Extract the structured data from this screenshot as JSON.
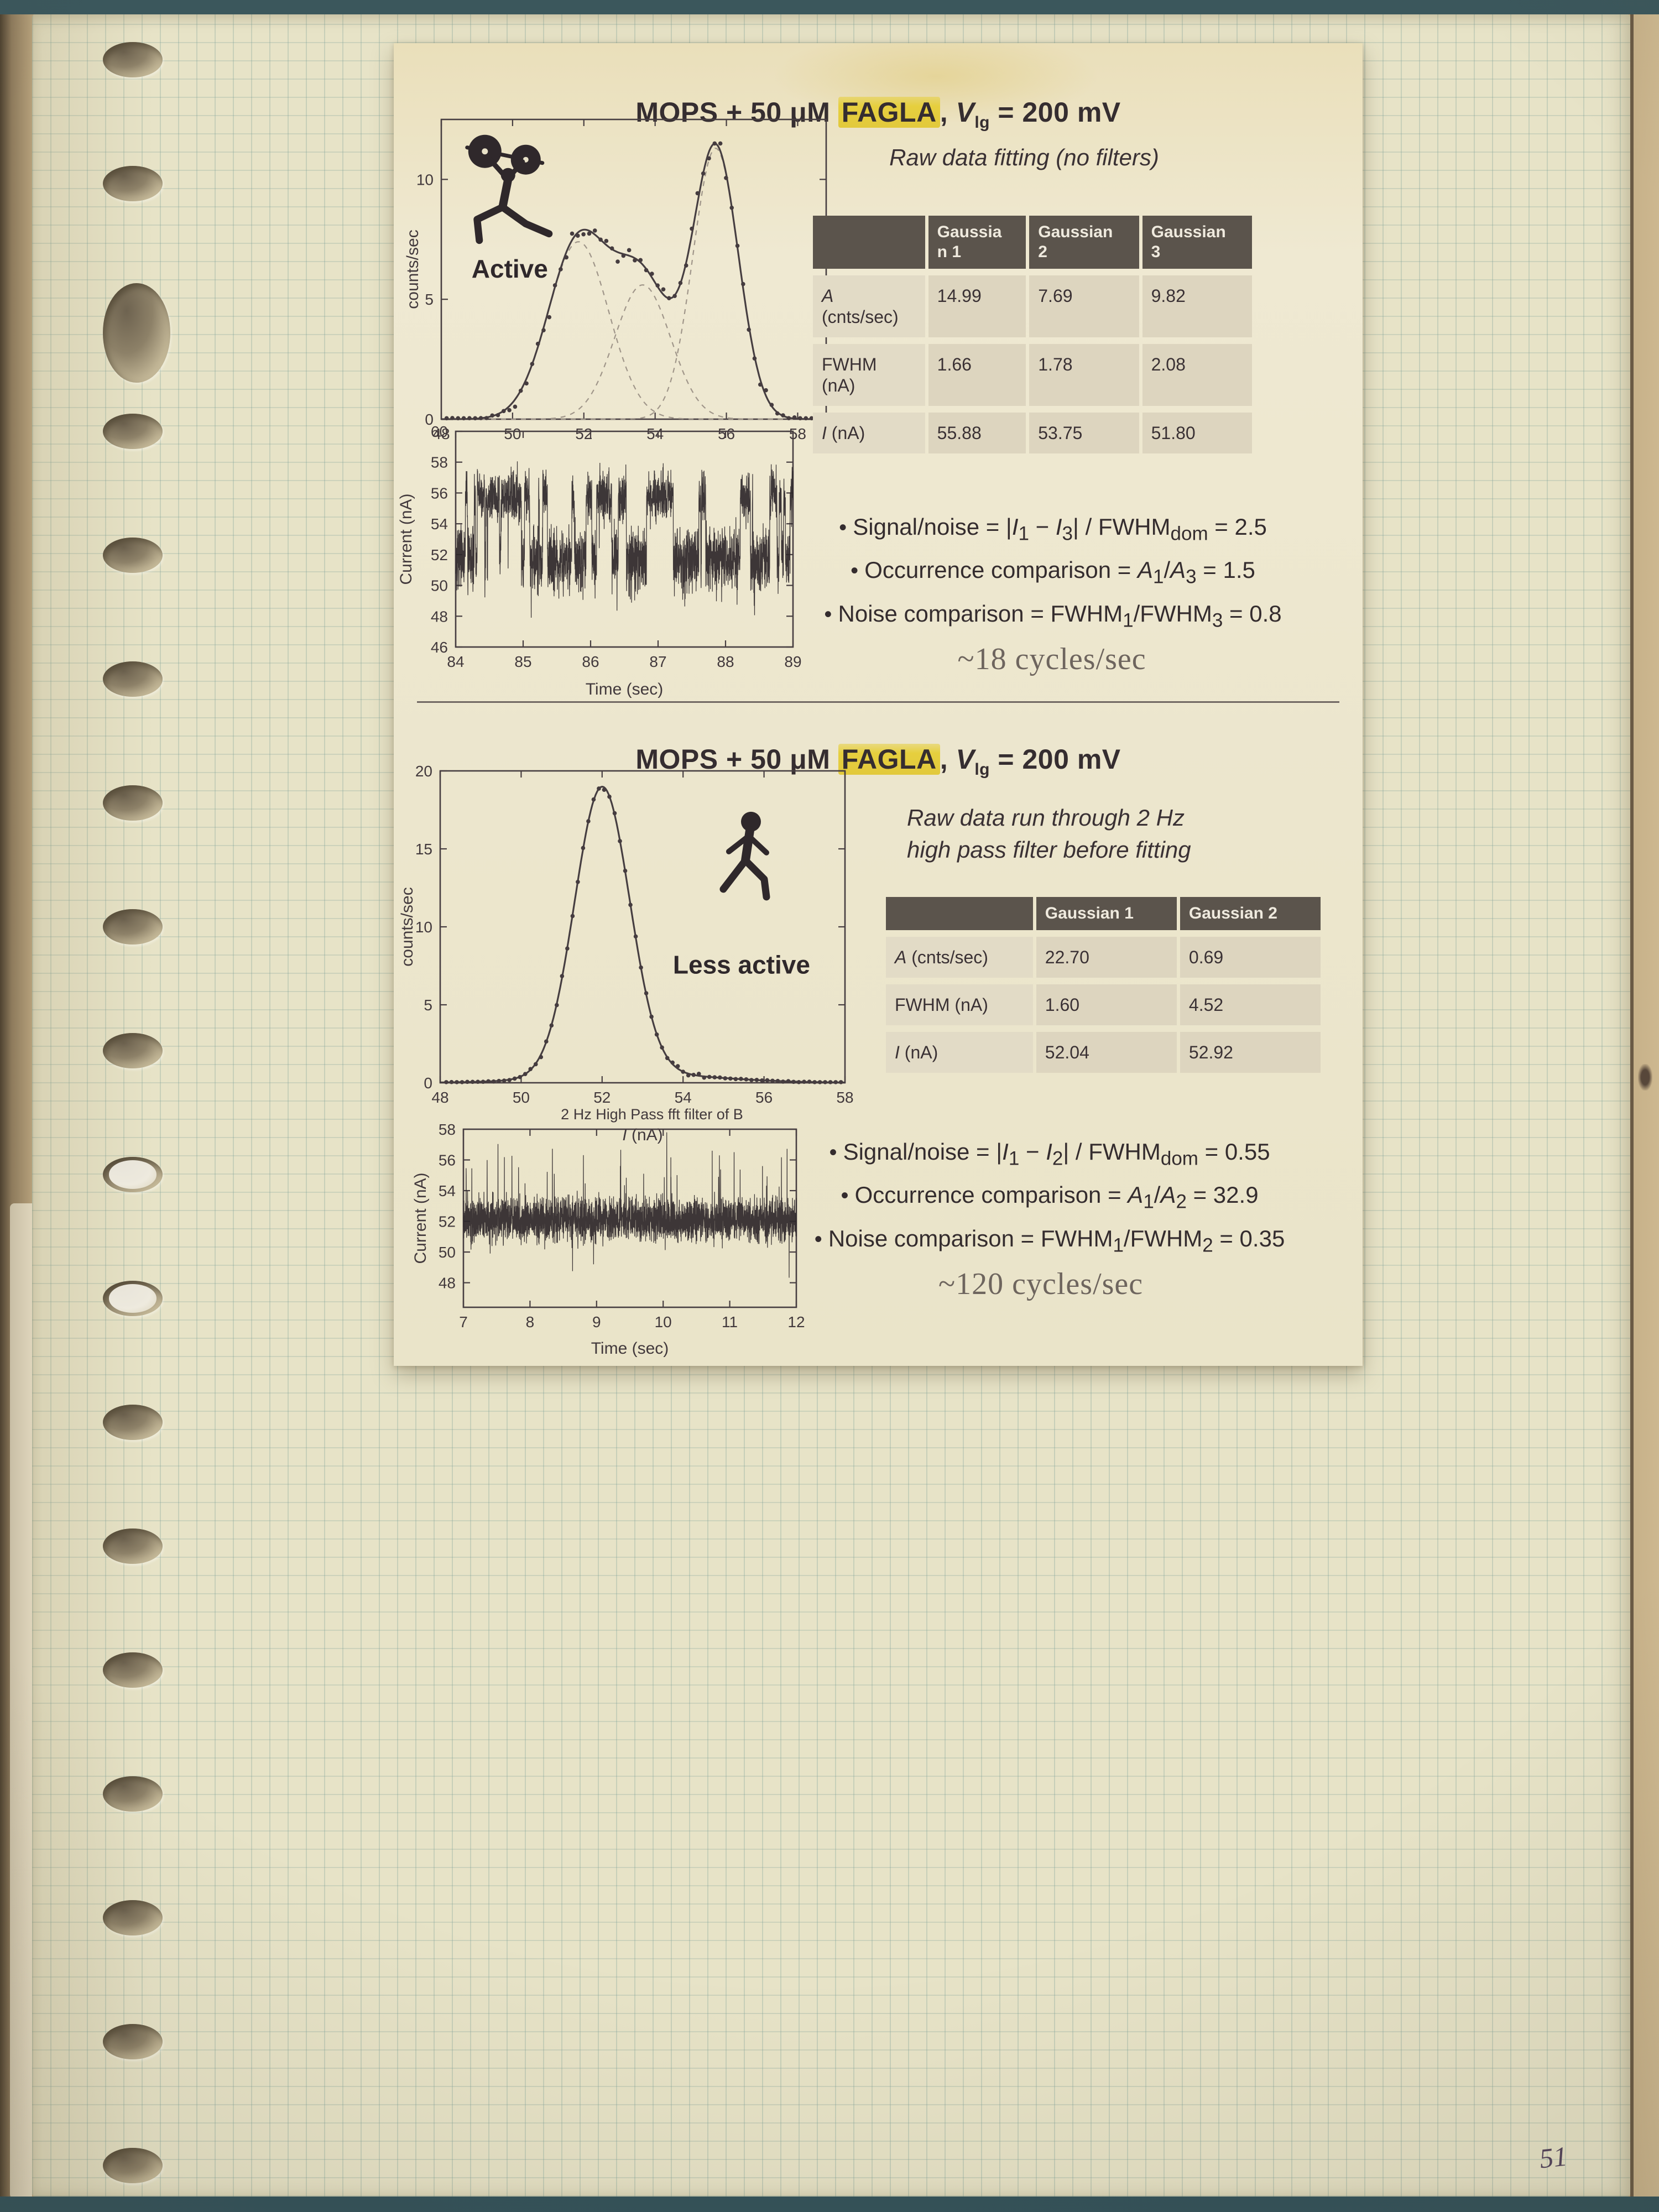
{
  "page": {
    "handwritten_number": "51"
  },
  "colors": {
    "highlight_yellow": "#e6cf3e",
    "notebook_paper": "#e7e3c7",
    "grid_line": "#7da098",
    "printed_sheet": "#ece6cd",
    "table_header_bg": "#5b544c",
    "ink": "#3a3134",
    "rate_gray": "#6e655e",
    "desk_tan": "#c3ad85",
    "photo_edge_teal": "#3b575c"
  },
  "sections": [
    {
      "title": {
        "pre": "MOPS + 50 μM ",
        "highlight": "FAGLA",
        "post": ", *V*_{lg} = 200 mV"
      },
      "subtitle": "Raw data fitting (no filters)",
      "activity_label": "Active",
      "activity_icon": "weightlifter-icon",
      "table": {
        "headers": [
          "",
          "Gaussia\nn 1",
          "Gaussian\n2",
          "Gaussian\n3"
        ],
        "rows": [
          [
            "*A*\n(cnts/sec)",
            "14.99",
            "7.69",
            "9.82"
          ],
          [
            "FWHM\n(nA)",
            "1.66",
            "1.78",
            "2.08"
          ],
          [
            "*I* (nA)",
            "55.88",
            "53.75",
            "51.80"
          ]
        ]
      },
      "bullets": [
        "Signal/noise = |*I*_{1} − *I*_{3}| / FWHM_{dom} = 2.5",
        "Occurrence comparison = *A*_{1}/*A*_{3} = 1.5",
        "Noise comparison = FWHM_{1}/FWHM_{3} = 0.8"
      ],
      "rate": "~18 cycles/sec"
    },
    {
      "title": {
        "pre": "MOPS + 50 μM ",
        "highlight": "FAGLA",
        "post": ", *V*_{lg} = 200 mV"
      },
      "subtitle": "Raw data run through 2 Hz\nhigh pass filter before fitting",
      "activity_label": "Less active",
      "activity_icon": "walking-person-icon",
      "table": {
        "headers": [
          "",
          "Gaussian 1",
          "Gaussian 2"
        ],
        "rows": [
          [
            "*A* (cnts/sec)",
            "22.70",
            "0.69"
          ],
          [
            "FWHM (nA)",
            "1.60",
            "4.52"
          ],
          [
            "*I* (nA)",
            "52.04",
            "52.92"
          ]
        ]
      },
      "bullets": [
        "Signal/noise = |*I*_{1} − *I*_{2}| / FWHM_{dom} = 0.55",
        "Occurrence comparison = *A*_{1}/*A*_{2} = 32.9",
        "Noise comparison = FWHM_{1}/FWHM_{2} = 0.35"
      ],
      "rate": "~120 cycles/sec"
    }
  ],
  "chart_data": [
    {
      "type": "line",
      "kind": "histogram-fit",
      "title": "",
      "xlabel": "",
      "ylabel": "counts/sec",
      "xlim": [
        48,
        58.8
      ],
      "ylim": [
        0,
        12.5
      ],
      "xticks": [
        48,
        50,
        52,
        54,
        56,
        58
      ],
      "yticks": [
        0,
        5,
        10
      ],
      "grid": false,
      "legend": "none",
      "annotation": "Active",
      "icon": "weightlifter",
      "series": [
        {
          "name": "Gaussian 3 component",
          "style": "dashed",
          "A": 7.4,
          "center": 51.85,
          "fwhm": 2.0
        },
        {
          "name": "Gaussian 2 component",
          "style": "dashed",
          "A": 5.6,
          "center": 53.65,
          "fwhm": 1.85
        },
        {
          "name": "Gaussian 1 component",
          "style": "dashed",
          "A": 11.3,
          "center": 55.7,
          "fwhm": 1.5
        },
        {
          "name": "total fit",
          "style": "solid-sum"
        }
      ],
      "scatter": {
        "name": "measured counts",
        "follows": "sum",
        "jitter": 0.45,
        "step": 0.16
      }
    },
    {
      "type": "line",
      "kind": "noise-trace",
      "title": "",
      "xlabel": "Time (sec)",
      "ylabel": "Current (nA)",
      "xlim": [
        84,
        89
      ],
      "ylim": [
        46,
        60
      ],
      "xticks": [
        84,
        85,
        86,
        87,
        88,
        89
      ],
      "yticks": [
        46,
        48,
        50,
        52,
        54,
        56,
        58,
        60
      ],
      "grid": false,
      "description": "two-level noisy current trace switching between ~52 and ~56 nA",
      "noise": {
        "mode": "telegraph",
        "levels": [
          51.7,
          55.8
        ],
        "amp": [
          1.55,
          1.25
        ],
        "switch_p": 0.016,
        "n": 2600,
        "seed": 7
      }
    },
    {
      "type": "line",
      "kind": "histogram-fit",
      "title": "",
      "xlabel": "I (nA)",
      "xlabel_italic_prefix": "I",
      "ylabel": "counts/sec",
      "xlim": [
        48,
        58
      ],
      "ylim": [
        0,
        20
      ],
      "xticks": [
        48,
        50,
        52,
        54,
        56,
        58
      ],
      "yticks": [
        0,
        5,
        10,
        15,
        20
      ],
      "grid": false,
      "legend": "none",
      "annotation": "Less active",
      "icon": "walker",
      "series": [
        {
          "name": "Gaussian 1 component",
          "style": "solid-hidden",
          "A": 18.5,
          "center": 52.0,
          "fwhm": 1.6
        },
        {
          "name": "Gaussian 2 component",
          "style": "solid-hidden",
          "A": 0.55,
          "center": 52.92,
          "fwhm": 4.52
        },
        {
          "name": "total fit",
          "style": "solid-sum"
        }
      ],
      "scatter": {
        "name": "measured counts",
        "follows": "sum",
        "jitter": 0.18,
        "step": 0.13
      }
    },
    {
      "type": "line",
      "kind": "noise-trace",
      "title": "2 Hz High Pass fft filter of B",
      "xlabel": "Time (sec)",
      "ylabel": "Current (nA)",
      "xlim": [
        7,
        12
      ],
      "ylim": [
        46.4,
        58
      ],
      "xticks": [
        7,
        8,
        9,
        10,
        11,
        12
      ],
      "yticks": [
        48,
        50,
        52,
        54,
        56,
        58
      ],
      "grid": false,
      "description": "dense noise centered at ~52 nA with spikes up to ~57 nA",
      "noise": {
        "mode": "centered",
        "base": 52.1,
        "amp": 1.05,
        "spike_up_p": 0.02,
        "spike_up_max": 4.6,
        "spike_dn_p": 0.012,
        "spike_dn_max": 2.6,
        "n": 3200,
        "seed": 11
      }
    }
  ]
}
